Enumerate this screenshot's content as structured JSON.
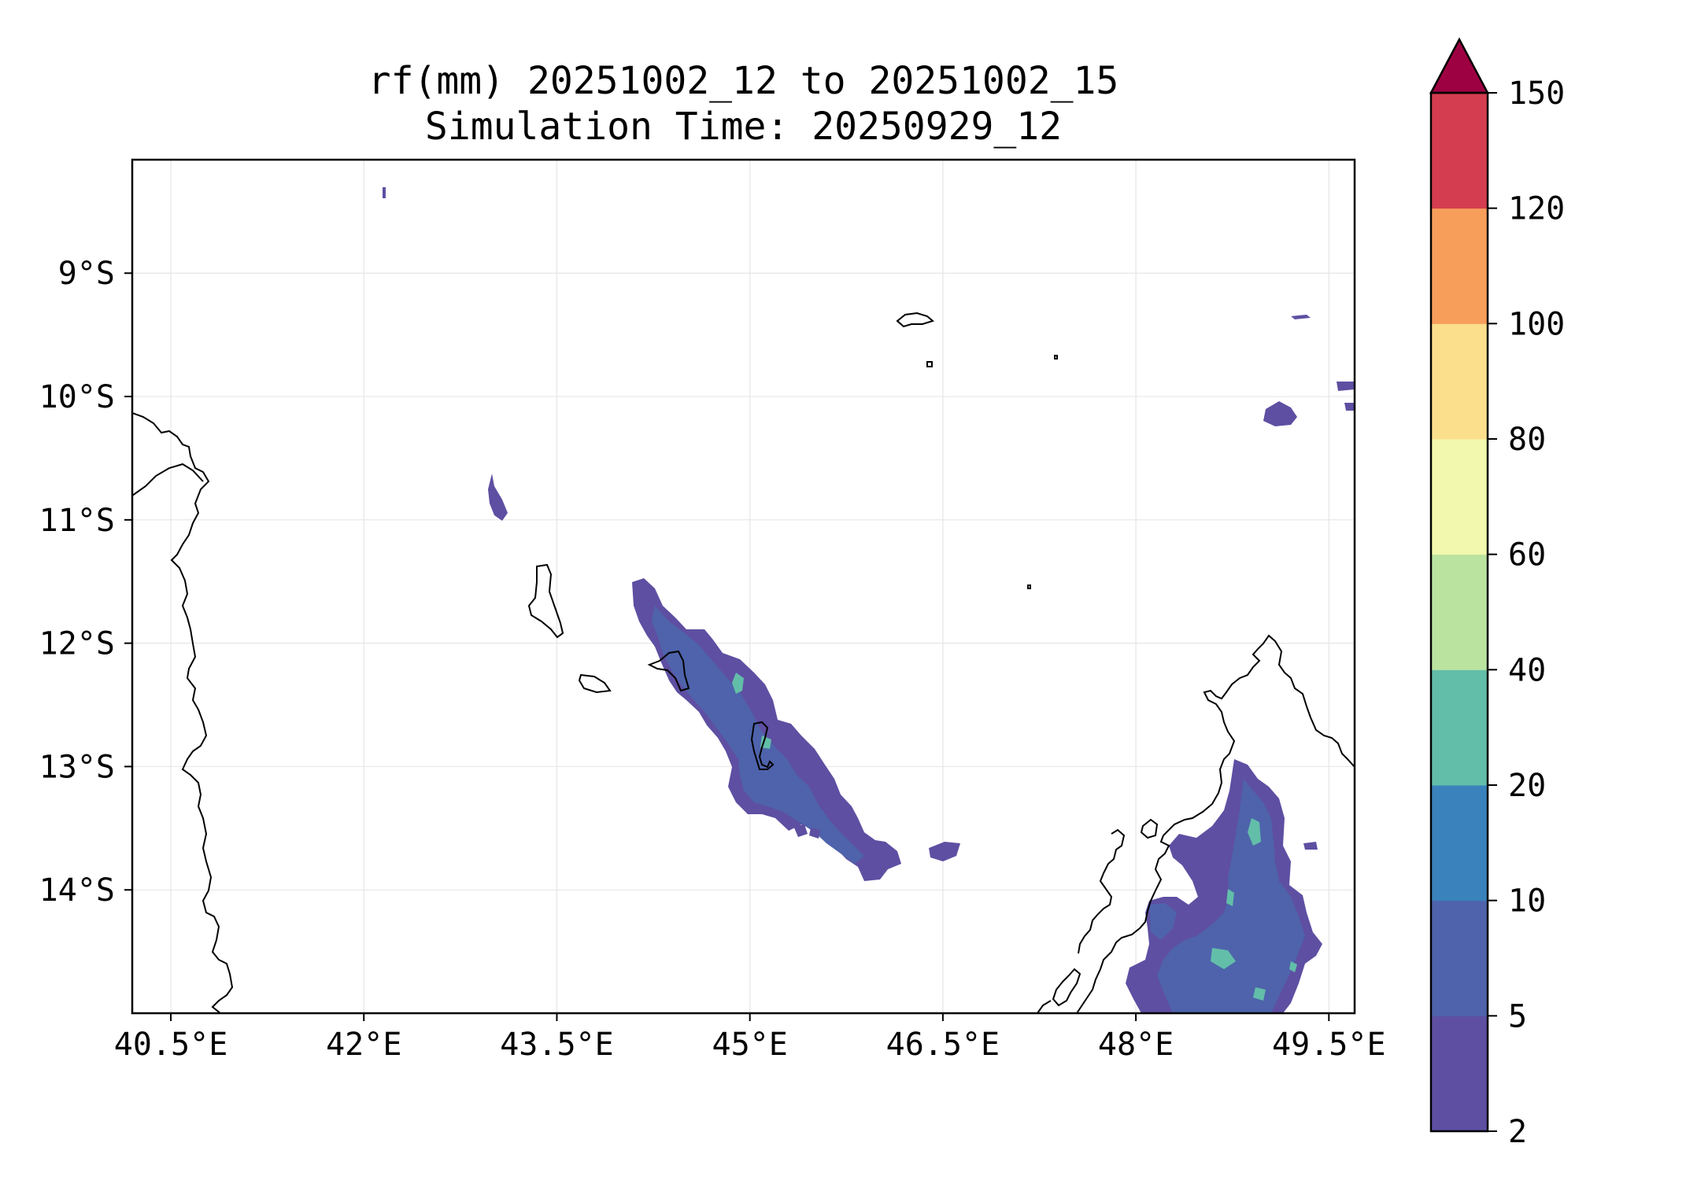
{
  "title": {
    "line1": "rf(mm) 20251002_12 to 20251002_15",
    "line2": "Simulation Time: 20250929_12"
  },
  "map": {
    "lon_range": [
      40.2,
      49.7
    ],
    "lat_range": [
      -15.0,
      -8.08
    ],
    "xticks": [
      "40.5°E",
      "42°E",
      "43.5°E",
      "45°E",
      "46.5°E",
      "48°E",
      "49.5°E"
    ],
    "xtick_values": [
      40.5,
      42.0,
      43.5,
      45.0,
      46.5,
      48.0,
      49.5
    ],
    "yticks": [
      "9°S",
      "10°S",
      "11°S",
      "12°S",
      "13°S",
      "14°S"
    ],
    "ytick_values": [
      -9,
      -10,
      -11,
      -12,
      -13,
      -14
    ],
    "grid": true,
    "field": "rf(mm)"
  },
  "colorbar": {
    "levels": [
      "2",
      "5",
      "10",
      "20",
      "40",
      "60",
      "80",
      "100",
      "120",
      "150"
    ],
    "colors": [
      "#5e4fa2",
      "#4e63ab",
      "#3a82bb",
      "#62bea9",
      "#bae3a0",
      "#f2f8ad",
      "#fbdf8c",
      "#f89e5b",
      "#d43d4f"
    ],
    "extend_color": "#9e0142",
    "extend": "max"
  }
}
